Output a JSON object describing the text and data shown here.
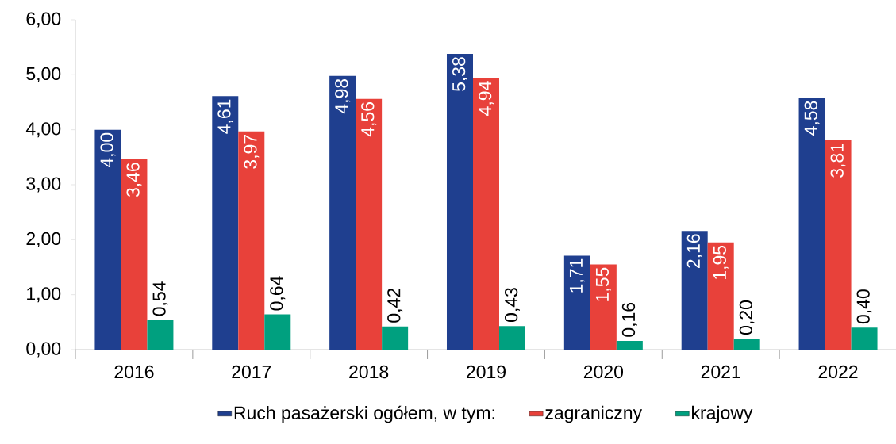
{
  "chart_data": {
    "type": "bar",
    "categories": [
      "2016",
      "2017",
      "2018",
      "2019",
      "2020",
      "2021",
      "2022"
    ],
    "series": [
      {
        "name": "Ruch pasażerski ogółem, w tym:",
        "color": "#1f3f8f",
        "values": [
          4.0,
          4.61,
          4.98,
          5.38,
          1.71,
          2.16,
          4.58
        ],
        "value_labels": [
          "4,00",
          "4,61",
          "4,98",
          "5,38",
          "1,71",
          "2,16",
          "4,58"
        ]
      },
      {
        "name": "zagraniczny",
        "color": "#e8413a",
        "values": [
          3.46,
          3.97,
          4.56,
          4.94,
          1.55,
          1.95,
          3.81
        ],
        "value_labels": [
          "3,46",
          "3,97",
          "4,56",
          "4,94",
          "1,55",
          "1,95",
          "3,81"
        ]
      },
      {
        "name": "krajowy",
        "color": "#00a07f",
        "values": [
          0.54,
          0.64,
          0.42,
          0.43,
          0.16,
          0.2,
          0.4
        ],
        "value_labels": [
          "0,54",
          "0,64",
          "0,42",
          "0,43",
          "0,16",
          "0,20",
          "0,40"
        ]
      }
    ],
    "ylim": [
      0,
      6
    ],
    "yticks": [
      {
        "value": 0,
        "label": "0,00"
      },
      {
        "value": 1,
        "label": "1,00"
      },
      {
        "value": 2,
        "label": "2,00"
      },
      {
        "value": 3,
        "label": "3,00"
      },
      {
        "value": 4,
        "label": "4,00"
      },
      {
        "value": 5,
        "label": "5,00"
      },
      {
        "value": 6,
        "label": "6,00"
      }
    ],
    "grid": false,
    "legend": "bottom"
  }
}
